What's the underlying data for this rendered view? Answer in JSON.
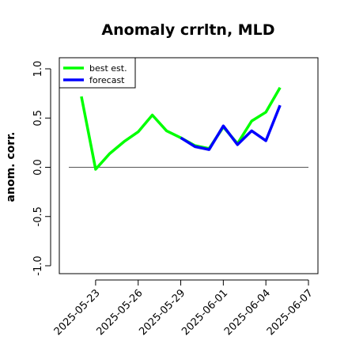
{
  "chart_data": {
    "type": "line",
    "title": "Anomaly crrltn, MLD",
    "xlabel": "",
    "ylabel": "anom. corr.",
    "ylim": [
      -1.0,
      1.0
    ],
    "yticks": [
      "-1.0",
      "-0.5",
      "0.0",
      "0.5",
      "1.0"
    ],
    "ytick_values": [
      -1.0,
      -0.5,
      0.0,
      0.5,
      1.0
    ],
    "xlim": [
      "2025-05-21",
      "2025-06-07"
    ],
    "xticks": [
      "2025-05-23",
      "2025-05-26",
      "2025-05-29",
      "2025-06-01",
      "2025-06-04",
      "2025-06-07"
    ],
    "highlight_tick": "2025-05-29",
    "highlight_color": "#228b22",
    "reference_line": 0.0,
    "grid": false,
    "legend_position": "top-left",
    "series": [
      {
        "name": "best est.",
        "color": "#00ff00",
        "x": [
          "2025-05-22",
          "2025-05-23",
          "2025-05-24",
          "2025-05-25",
          "2025-05-26",
          "2025-05-27",
          "2025-05-28",
          "2025-05-29",
          "2025-05-30",
          "2025-05-31",
          "2025-06-01",
          "2025-06-02",
          "2025-06-03",
          "2025-06-04",
          "2025-06-05"
        ],
        "y": [
          0.72,
          -0.02,
          0.14,
          0.26,
          0.36,
          0.53,
          0.37,
          0.3,
          0.22,
          0.19,
          0.41,
          0.24,
          0.47,
          0.56,
          0.81
        ]
      },
      {
        "name": "forecast",
        "color": "#0000ff",
        "x": [
          "2025-05-29",
          "2025-05-30",
          "2025-05-31",
          "2025-06-01",
          "2025-06-02",
          "2025-06-03",
          "2025-06-04",
          "2025-06-05"
        ],
        "y": [
          0.3,
          0.21,
          0.18,
          0.42,
          0.23,
          0.37,
          0.27,
          0.63
        ]
      }
    ]
  }
}
